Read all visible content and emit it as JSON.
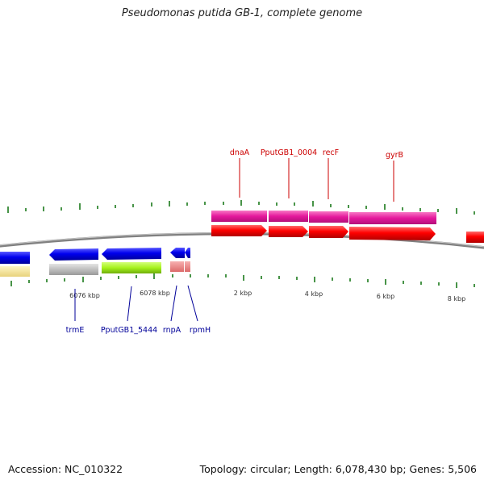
{
  "title": "Pseudomonas putida GB-1, complete genome",
  "accession": "Accession: NC_010322",
  "summary": "Topology: circular; Length: 6,078,430 bp; Genes: 5,506",
  "scale_labels": [
    "6076 kbp",
    "6078 kbp",
    "2 kbp",
    "4 kbp",
    "6 kbp",
    "8 kbp"
  ],
  "top_gene_labels": [
    "dnaA",
    "PputGB1_0004",
    "recF",
    "gyrB"
  ],
  "bottom_gene_labels": [
    "trmE",
    "PputGB1_5444",
    "rnpA",
    "rpmH"
  ],
  "colors": {
    "forward_gene": "#ff0000",
    "forward_cds": "#e8179f",
    "reverse_gene": "#0000ee",
    "backbone": "#808080",
    "ticks": "#1a7a1a",
    "top_label": "#cc0000",
    "bottom_label": "#000099"
  }
}
